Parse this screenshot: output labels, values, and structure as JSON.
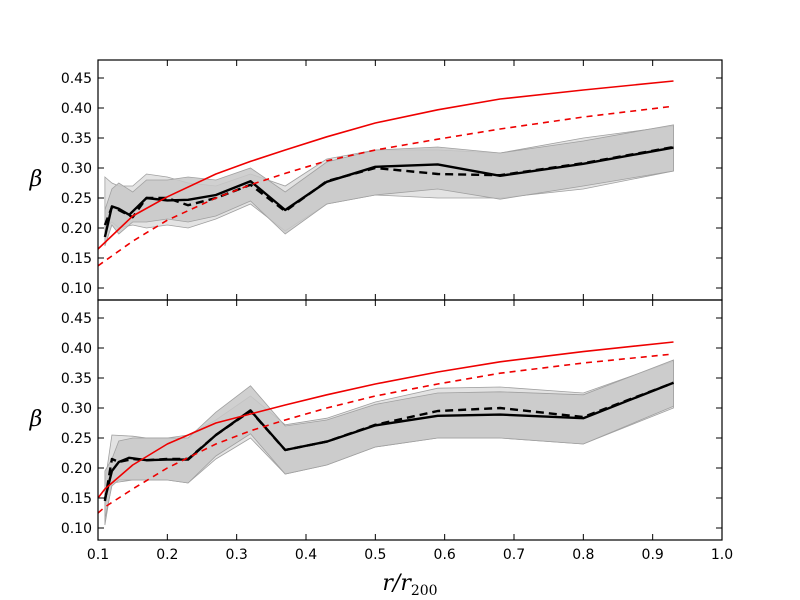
{
  "chart_data": {
    "type": "line",
    "xlabel": "r/r",
    "xlabel_sub": "200",
    "xlim": [
      0.1,
      1.0
    ],
    "xticks": [
      "0.1",
      "0.2",
      "0.3",
      "0.4",
      "0.5",
      "0.6",
      "0.7",
      "0.8",
      "0.9",
      "1.0"
    ],
    "colors": {
      "model": "#ee0000",
      "data": "#000000",
      "band_dark": "#c8c8c8",
      "band_light": "#e0e0e0",
      "band_edge": "#a0a0a0"
    },
    "panels": [
      {
        "ylabel": "β",
        "ylim": [
          0.08,
          0.48
        ],
        "yticks": [
          "0.10",
          "0.15",
          "0.20",
          "0.25",
          "0.30",
          "0.35",
          "0.40",
          "0.45"
        ],
        "band_light": {
          "x": [
            0.11,
            0.12,
            0.13,
            0.15,
            0.17,
            0.2,
            0.23,
            0.27,
            0.32,
            0.37,
            0.43,
            0.5,
            0.59,
            0.68,
            0.8,
            0.93
          ],
          "upper": [
            0.285,
            0.275,
            0.27,
            0.27,
            0.29,
            0.285,
            0.275,
            0.27,
            0.29,
            0.27,
            0.315,
            0.33,
            0.33,
            0.325,
            0.35,
            0.37
          ],
          "lower": [
            0.2,
            0.21,
            0.2,
            0.205,
            0.2,
            0.205,
            0.2,
            0.215,
            0.24,
            0.195,
            0.24,
            0.255,
            0.25,
            0.25,
            0.265,
            0.295
          ]
        },
        "band_dark": {
          "x": [
            0.11,
            0.12,
            0.13,
            0.15,
            0.17,
            0.2,
            0.23,
            0.27,
            0.32,
            0.37,
            0.43,
            0.5,
            0.59,
            0.68,
            0.8,
            0.93
          ],
          "upper": [
            0.23,
            0.265,
            0.275,
            0.26,
            0.28,
            0.28,
            0.285,
            0.28,
            0.3,
            0.26,
            0.31,
            0.33,
            0.335,
            0.325,
            0.345,
            0.372
          ],
          "lower": [
            0.17,
            0.205,
            0.19,
            0.21,
            0.21,
            0.215,
            0.21,
            0.22,
            0.245,
            0.19,
            0.24,
            0.255,
            0.265,
            0.248,
            0.27,
            0.295
          ]
        },
        "series": [
          {
            "name": "data-solid",
            "style": "solid",
            "x": [
              0.11,
              0.12,
              0.13,
              0.145,
              0.17,
              0.2,
              0.23,
              0.27,
              0.32,
              0.37,
              0.43,
              0.5,
              0.59,
              0.68,
              0.8,
              0.93
            ],
            "y": [
              0.185,
              0.236,
              0.232,
              0.222,
              0.25,
              0.246,
              0.247,
              0.255,
              0.278,
              0.23,
              0.277,
              0.302,
              0.306,
              0.287,
              0.307,
              0.334
            ]
          },
          {
            "name": "data-dashed",
            "style": "dashed",
            "x": [
              0.11,
              0.12,
              0.13,
              0.15,
              0.17,
              0.2,
              0.23,
              0.27,
              0.32,
              0.37,
              0.43,
              0.5,
              0.59,
              0.68,
              0.8,
              0.93
            ],
            "y": [
              0.205,
              0.235,
              0.23,
              0.218,
              0.25,
              0.25,
              0.238,
              0.25,
              0.272,
              0.228,
              0.278,
              0.3,
              0.29,
              0.288,
              0.308,
              0.335
            ]
          },
          {
            "name": "model-solid",
            "style": "solid",
            "x": [
              0.1,
              0.15,
              0.2,
              0.27,
              0.32,
              0.37,
              0.43,
              0.5,
              0.59,
              0.68,
              0.8,
              0.93
            ],
            "y": [
              0.165,
              0.22,
              0.252,
              0.29,
              0.311,
              0.33,
              0.352,
              0.375,
              0.397,
              0.415,
              0.43,
              0.445
            ]
          },
          {
            "name": "model-dashed",
            "style": "dashed",
            "x": [
              0.1,
              0.15,
              0.2,
              0.27,
              0.32,
              0.37,
              0.43,
              0.5,
              0.59,
              0.68,
              0.8,
              0.93
            ],
            "y": [
              0.137,
              0.178,
              0.213,
              0.25,
              0.272,
              0.291,
              0.312,
              0.33,
              0.348,
              0.365,
              0.385,
              0.403
            ]
          }
        ]
      },
      {
        "ylabel": "β",
        "ylim": [
          0.08,
          0.48
        ],
        "yticks": [
          "0.10",
          "0.15",
          "0.20",
          "0.25",
          "0.30",
          "0.35",
          "0.40",
          "0.45"
        ],
        "band_light": {
          "x": [
            0.11,
            0.12,
            0.15,
            0.17,
            0.2,
            0.23,
            0.27,
            0.32,
            0.37,
            0.43,
            0.5,
            0.59,
            0.68,
            0.8,
            0.93
          ],
          "upper": [
            0.175,
            0.255,
            0.253,
            0.25,
            0.25,
            0.255,
            0.28,
            0.32,
            0.272,
            0.283,
            0.31,
            0.333,
            0.335,
            0.325,
            0.378
          ],
          "lower": [
            0.105,
            0.175,
            0.18,
            0.18,
            0.18,
            0.175,
            0.215,
            0.25,
            0.19,
            0.205,
            0.235,
            0.25,
            0.25,
            0.24,
            0.3
          ]
        },
        "band_dark": {
          "x": [
            0.11,
            0.12,
            0.13,
            0.15,
            0.17,
            0.2,
            0.23,
            0.27,
            0.32,
            0.37,
            0.43,
            0.5,
            0.59,
            0.68,
            0.8,
            0.93
          ],
          "upper": [
            0.195,
            0.215,
            0.245,
            0.25,
            0.25,
            0.25,
            0.25,
            0.293,
            0.337,
            0.27,
            0.28,
            0.306,
            0.325,
            0.327,
            0.322,
            0.38
          ],
          "lower": [
            0.115,
            0.17,
            0.18,
            0.18,
            0.18,
            0.18,
            0.175,
            0.22,
            0.257,
            0.19,
            0.205,
            0.235,
            0.25,
            0.25,
            0.24,
            0.303
          ]
        },
        "series": [
          {
            "name": "data-solid",
            "style": "solid",
            "x": [
              0.11,
              0.12,
              0.13,
              0.145,
              0.17,
              0.2,
              0.23,
              0.27,
              0.32,
              0.37,
              0.43,
              0.5,
              0.59,
              0.68,
              0.8,
              0.93
            ],
            "y": [
              0.148,
              0.195,
              0.21,
              0.217,
              0.213,
              0.214,
              0.214,
              0.255,
              0.296,
              0.23,
              0.244,
              0.271,
              0.287,
              0.289,
              0.283,
              0.342
            ]
          },
          {
            "name": "data-dashed",
            "style": "dashed",
            "x": [
              0.11,
              0.12,
              0.13,
              0.15,
              0.17,
              0.2,
              0.23,
              0.27,
              0.32,
              0.37,
              0.43,
              0.5,
              0.59,
              0.68,
              0.8,
              0.93
            ],
            "y": [
              0.145,
              0.215,
              0.21,
              0.215,
              0.213,
              0.215,
              0.215,
              0.255,
              0.295,
              0.23,
              0.244,
              0.272,
              0.295,
              0.3,
              0.285,
              0.342
            ]
          },
          {
            "name": "model-solid",
            "style": "solid",
            "x": [
              0.1,
              0.11,
              0.15,
              0.2,
              0.27,
              0.32,
              0.37,
              0.43,
              0.5,
              0.59,
              0.68,
              0.8,
              0.93
            ],
            "y": [
              0.15,
              0.165,
              0.205,
              0.24,
              0.275,
              0.29,
              0.305,
              0.322,
              0.34,
              0.36,
              0.377,
              0.394,
              0.41
            ]
          },
          {
            "name": "model-dashed",
            "style": "dashed",
            "x": [
              0.1,
              0.11,
              0.15,
              0.2,
              0.27,
              0.32,
              0.37,
              0.43,
              0.5,
              0.59,
              0.68,
              0.8,
              0.93
            ],
            "y": [
              0.125,
              0.135,
              0.165,
              0.2,
              0.24,
              0.262,
              0.28,
              0.3,
              0.32,
              0.34,
              0.358,
              0.375,
              0.39
            ]
          }
        ]
      }
    ]
  }
}
